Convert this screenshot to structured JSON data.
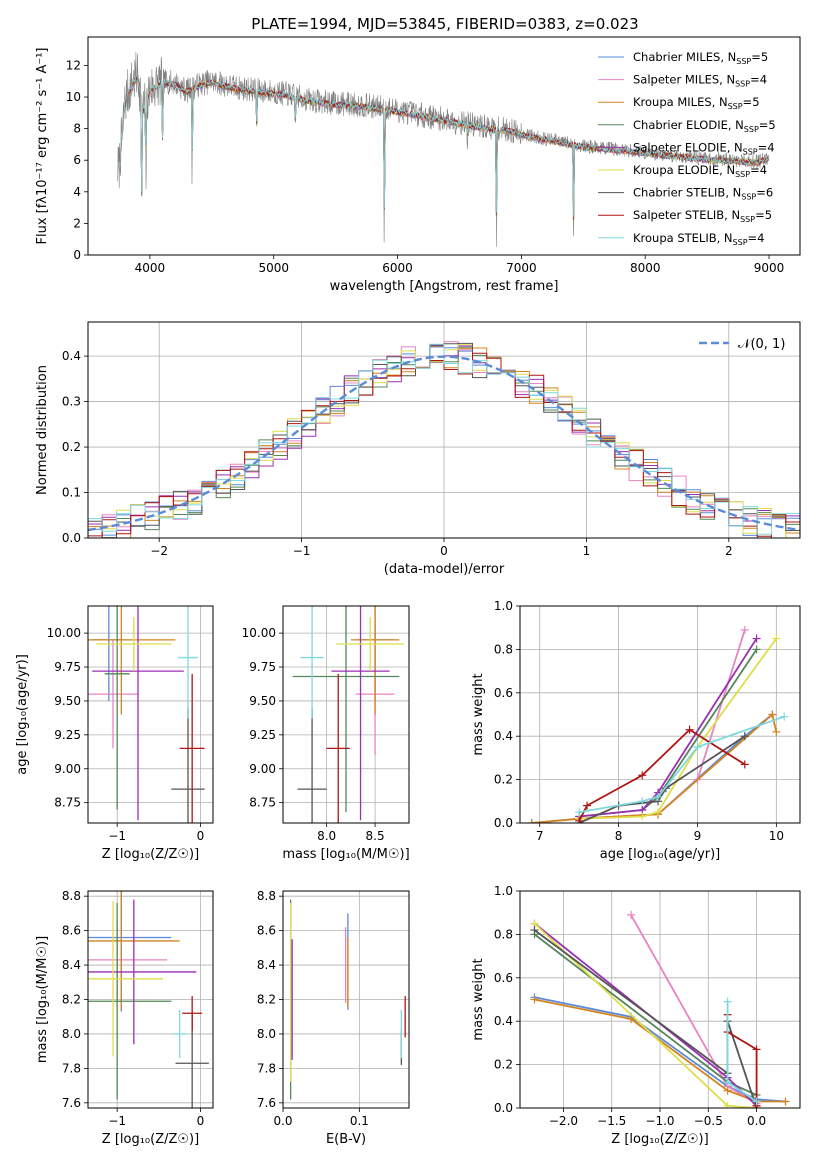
{
  "figure_title": "PLATE=1994, MJD=53845, FIBERID=0383, z=0.023",
  "series_colors": {
    "Chabrier MILES": "#5b8bd8",
    "Salpeter MILES": "#e884c4",
    "Kroupa MILES": "#d4841f",
    "Chabrier ELODIE": "#55875a",
    "Salpeter ELODIE": "#9b2fb4",
    "Kroupa ELODIE": "#dede4a",
    "Chabrier STELIB": "#555555",
    "Salpeter STELIB": "#b01414",
    "Kroupa STELIB": "#7fd8de"
  },
  "chart_data": [
    {
      "id": "spectrum",
      "type": "line",
      "title": "PLATE=1994, MJD=53845, FIBERID=0383, z=0.023",
      "xlabel": "wavelength [Angstrom, rest frame]",
      "ylabel": "Flux [fλ10⁻¹⁷ erg cm⁻² s⁻¹ A⁻¹]",
      "xlim": [
        3500,
        9250
      ],
      "ylim": [
        0,
        13.8
      ],
      "xticks": [
        4000,
        5000,
        6000,
        7000,
        8000,
        9000
      ],
      "yticks": [
        0,
        2,
        4,
        6,
        8,
        10,
        12
      ],
      "legend": "upper right",
      "legend_entries": [
        {
          "name": "Chabrier MILES",
          "nssp": "5"
        },
        {
          "name": "Salpeter MILES",
          "nssp": "4"
        },
        {
          "name": "Kroupa MILES",
          "nssp": "5"
        },
        {
          "name": "Chabrier ELODIE",
          "nssp": "5"
        },
        {
          "name": "Salpeter ELODIE",
          "nssp": "4"
        },
        {
          "name": "Kroupa ELODIE",
          "nssp": "4"
        },
        {
          "name": "Chabrier STELIB",
          "nssp": "6"
        },
        {
          "name": "Salpeter STELIB",
          "nssp": "5"
        },
        {
          "name": "Kroupa STELIB",
          "nssp": "4"
        }
      ],
      "data_continuum": {
        "x": [
          3750,
          3800,
          3850,
          3900,
          3950,
          4000,
          4100,
          4200,
          4300,
          4400,
          4500,
          4700,
          4900,
          5100,
          5300,
          5500,
          5700,
          5900,
          6100,
          6300,
          6500,
          6700,
          6900,
          7100,
          7300,
          7500,
          7700,
          7900,
          8100,
          8300,
          8500,
          8700,
          8900,
          9000
        ],
        "y": [
          5.5,
          9.8,
          10.8,
          11.4,
          9.2,
          10.5,
          11.0,
          10.9,
          10.4,
          10.8,
          11.0,
          10.6,
          10.4,
          10.2,
          9.8,
          9.6,
          9.5,
          9.3,
          9.0,
          8.7,
          8.4,
          8.1,
          7.9,
          7.5,
          7.2,
          6.9,
          6.75,
          6.6,
          6.4,
          6.25,
          6.1,
          6.0,
          5.9,
          6.2
        ]
      },
      "absorption_lines": [
        {
          "x": 3934,
          "y": 3.8
        },
        {
          "x": 3969,
          "y": 4.2
        },
        {
          "x": 4102,
          "y": 7.5
        },
        {
          "x": 4340,
          "y": 5.0
        },
        {
          "x": 4861,
          "y": 8.0
        },
        {
          "x": 5175,
          "y": 8.5
        },
        {
          "x": 5892,
          "y": 0.0
        },
        {
          "x": 6563,
          "y": 7.2
        },
        {
          "x": 6800,
          "y": 0.0
        },
        {
          "x": 7420,
          "y": 0.0
        }
      ]
    },
    {
      "id": "residuals",
      "type": "step",
      "xlabel": "(data-model)/error",
      "ylabel": "Normed distribution",
      "xlim": [
        -2.5,
        2.5
      ],
      "ylim": [
        0,
        0.475
      ],
      "xticks": [
        -2,
        -1,
        0,
        1,
        2
      ],
      "yticks": [
        0.0,
        0.1,
        0.2,
        0.3,
        0.4
      ],
      "legend": "upper right",
      "reference_label": "𝒩(0, 1)",
      "reference": {
        "mean": 0,
        "sigma": 1
      },
      "bin_width": 0.1
    },
    {
      "id": "age-vs-Z",
      "type": "errorbar",
      "xlabel": "Z [log₁₀(Z/Z☉)]",
      "ylabel": "age  [log₁₀(age/yr)]",
      "xlim": [
        -1.35,
        0.15
      ],
      "ylim": [
        8.6,
        10.2
      ],
      "xticks": [
        -1,
        0
      ],
      "yticks": [
        8.75,
        9.0,
        9.25,
        9.5,
        9.75,
        10.0
      ],
      "points": [
        {
          "series": "Chabrier MILES",
          "x": -1.1,
          "xerr": 0.2,
          "y": 9.95,
          "yerr": 0.45
        },
        {
          "series": "Salpeter MILES",
          "x": -1.05,
          "xerr": 0.3,
          "y": 9.55,
          "yerr": 0.4
        },
        {
          "series": "Kroupa MILES",
          "x": -0.95,
          "xerr": 0.65,
          "y": 9.95,
          "yerr": 0.55
        },
        {
          "series": "Chabrier ELODIE",
          "x": -1.0,
          "xerr": 0.15,
          "y": 9.7,
          "yerr": 1.0
        },
        {
          "series": "Salpeter ELODIE",
          "x": -0.75,
          "xerr": 0.55,
          "y": 9.72,
          "yerr": 1.1
        },
        {
          "series": "Kroupa ELODIE",
          "x": -0.8,
          "xerr": 0.45,
          "y": 9.92,
          "yerr": 0.2
        },
        {
          "series": "Chabrier STELIB",
          "x": -0.15,
          "xerr": 0.2,
          "y": 8.85,
          "yerr": 0.6
        },
        {
          "series": "Salpeter STELIB",
          "x": -0.1,
          "xerr": 0.15,
          "y": 9.15,
          "yerr": 0.55
        },
        {
          "series": "Kroupa STELIB",
          "x": -0.15,
          "xerr": 0.12,
          "y": 9.82,
          "yerr": 0.45
        }
      ]
    },
    {
      "id": "age-vs-mass",
      "type": "errorbar",
      "xlabel": "mass [log₁₀(M/M☉)]",
      "xlim": [
        7.55,
        8.85
      ],
      "ylim": [
        8.6,
        10.2
      ],
      "xticks": [
        8.0,
        8.5
      ],
      "yticks": [
        8.75,
        9.0,
        9.25,
        9.5,
        9.75,
        10.0
      ],
      "points": [
        {
          "series": "Chabrier MILES",
          "x": 8.5,
          "xerr": 0.2,
          "y": 9.95,
          "yerr": 0.45
        },
        {
          "series": "Salpeter MILES",
          "x": 8.5,
          "xerr": 0.2,
          "y": 9.55,
          "yerr": 0.45
        },
        {
          "series": "Kroupa MILES",
          "x": 8.5,
          "xerr": 0.25,
          "y": 9.95,
          "yerr": 0.55
        },
        {
          "series": "Chabrier ELODIE",
          "x": 8.2,
          "xerr": 0.55,
          "y": 9.68,
          "yerr": 1.0
        },
        {
          "series": "Salpeter ELODIE",
          "x": 8.35,
          "xerr": 0.3,
          "y": 9.72,
          "yerr": 1.1
        },
        {
          "series": "Kroupa ELODIE",
          "x": 8.45,
          "xerr": 0.35,
          "y": 9.92,
          "yerr": 0.2
        },
        {
          "series": "Chabrier STELIB",
          "x": 7.85,
          "xerr": 0.15,
          "y": 8.85,
          "yerr": 0.6
        },
        {
          "series": "Salpeter STELIB",
          "x": 8.12,
          "xerr": 0.12,
          "y": 9.15,
          "yerr": 0.55
        },
        {
          "series": "Kroupa STELIB",
          "x": 7.85,
          "xerr": 0.12,
          "y": 9.82,
          "yerr": 0.45
        }
      ]
    },
    {
      "id": "weight-vs-age",
      "type": "line",
      "xlabel": "age  [log₁₀(age/yr)]",
      "ylabel": "mass weight",
      "xlim": [
        6.75,
        10.3
      ],
      "ylim": [
        0,
        1
      ],
      "xticks": [
        7,
        8,
        9,
        10
      ],
      "yticks": [
        0.0,
        0.2,
        0.4,
        0.6,
        0.8,
        1.0
      ],
      "series": [
        {
          "name": "Chabrier MILES",
          "x": [
            6.9,
            7.5,
            8.5,
            9.6,
            9.95
          ],
          "y": [
            0.0,
            0.02,
            0.04,
            0.4,
            0.5
          ]
        },
        {
          "name": "Salpeter MILES",
          "x": [
            7.5,
            8.5,
            9.0,
            9.6
          ],
          "y": [
            0.02,
            0.04,
            0.2,
            0.89
          ]
        },
        {
          "name": "Kroupa MILES",
          "x": [
            6.9,
            7.5,
            8.5,
            9.95,
            10.0
          ],
          "y": [
            0.0,
            0.02,
            0.04,
            0.5,
            0.42
          ]
        },
        {
          "name": "Chabrier ELODIE",
          "x": [
            7.5,
            8.3,
            8.5,
            9.75
          ],
          "y": [
            0.03,
            0.06,
            0.12,
            0.8
          ]
        },
        {
          "name": "Salpeter ELODIE",
          "x": [
            7.5,
            8.3,
            8.5,
            9.75
          ],
          "y": [
            0.03,
            0.06,
            0.14,
            0.85
          ]
        },
        {
          "name": "Kroupa ELODIE",
          "x": [
            7.5,
            8.3,
            8.5,
            9.0,
            10.0
          ],
          "y": [
            0.02,
            0.03,
            0.05,
            0.35,
            0.85
          ]
        },
        {
          "name": "Chabrier STELIB",
          "x": [
            7.5,
            8.0,
            8.5,
            8.6,
            9.6
          ],
          "y": [
            0.0,
            0.08,
            0.1,
            0.16,
            0.4
          ]
        },
        {
          "name": "Salpeter STELIB",
          "x": [
            7.5,
            7.6,
            8.3,
            8.9,
            9.6
          ],
          "y": [
            0.01,
            0.08,
            0.22,
            0.43,
            0.27
          ]
        },
        {
          "name": "Kroupa STELIB",
          "x": [
            7.5,
            8.3,
            8.5,
            9.0,
            10.1
          ],
          "y": [
            0.05,
            0.1,
            0.12,
            0.35,
            0.49
          ]
        }
      ]
    },
    {
      "id": "mass-vs-Z",
      "type": "errorbar",
      "xlabel": "Z [log₁₀(Z/Z☉)]",
      "ylabel": "mass [log₁₀(M/M☉)]",
      "xlim": [
        -1.35,
        0.15
      ],
      "ylim": [
        7.57,
        8.83
      ],
      "xticks": [
        -1,
        0
      ],
      "yticks": [
        7.6,
        7.8,
        8.0,
        8.2,
        8.4,
        8.6,
        8.8
      ],
      "points": [
        {
          "series": "Chabrier MILES",
          "x": -0.95,
          "xerr": 0.6,
          "y": 8.56,
          "yerr": 0.43
        },
        {
          "series": "Salpeter MILES",
          "x": -1.0,
          "xerr": 0.6,
          "y": 8.43,
          "yerr": 0.22
        },
        {
          "series": "Kroupa MILES",
          "x": -0.95,
          "xerr": 0.7,
          "y": 8.54,
          "yerr": 0.4
        },
        {
          "series": "Chabrier ELODIE",
          "x": -1.0,
          "xerr": 0.65,
          "y": 8.19,
          "yerr": 0.57
        },
        {
          "series": "Salpeter ELODIE",
          "x": -0.8,
          "xerr": 0.75,
          "y": 8.36,
          "yerr": 0.42
        },
        {
          "series": "Kroupa ELODIE",
          "x": -1.05,
          "xerr": 0.6,
          "y": 8.32,
          "yerr": 0.45
        },
        {
          "series": "Chabrier STELIB",
          "x": -0.1,
          "xerr": 0.2,
          "y": 7.83,
          "yerr": 0.3
        },
        {
          "series": "Salpeter STELIB",
          "x": -0.1,
          "xerr": 0.12,
          "y": 8.12,
          "yerr": 0.1
        },
        {
          "series": "Kroupa STELIB",
          "x": -0.25,
          "xerr": 0.08,
          "y": 8.0,
          "yerr": 0.14
        }
      ]
    },
    {
      "id": "mass-vs-EBV",
      "type": "errorbar",
      "xlabel": "E(B-V)",
      "xlim": [
        0.0,
        0.165
      ],
      "ylim": [
        7.57,
        8.83
      ],
      "xticks": [
        0.0,
        0.1
      ],
      "yticks": [
        7.6,
        7.8,
        8.0,
        8.2,
        8.4,
        8.6,
        8.8
      ],
      "points": [
        {
          "series": "Chabrier MILES",
          "x": 0.085,
          "y": 8.42,
          "yerr": 0.28
        },
        {
          "series": "Salpeter MILES",
          "x": 0.082,
          "y": 8.4,
          "yerr": 0.22
        },
        {
          "series": "Kroupa MILES",
          "x": 0.085,
          "y": 8.36,
          "yerr": 0.2
        },
        {
          "series": "Chabrier ELODIE",
          "x": 0.01,
          "y": 8.2,
          "yerr": 0.58
        },
        {
          "series": "Salpeter ELODIE",
          "x": 0.012,
          "y": 8.2,
          "yerr": 0.35
        },
        {
          "series": "Kroupa ELODIE",
          "x": 0.01,
          "y": 8.24,
          "yerr": 0.52
        },
        {
          "series": "Chabrier STELIB",
          "x": 0.155,
          "y": 7.92,
          "yerr": 0.1
        },
        {
          "series": "Salpeter STELIB",
          "x": 0.16,
          "y": 8.1,
          "yerr": 0.12
        },
        {
          "series": "Kroupa STELIB",
          "x": 0.155,
          "y": 8.0,
          "yerr": 0.14
        }
      ]
    },
    {
      "id": "weight-vs-Z",
      "type": "line",
      "xlabel": "Z [log₁₀(Z/Z☉)]",
      "ylabel": "mass weight",
      "xlim": [
        -2.45,
        0.45
      ],
      "ylim": [
        0,
        1
      ],
      "xticks": [
        -2.0,
        -1.5,
        -1.0,
        -0.5,
        0.0
      ],
      "yticks": [
        0.0,
        0.2,
        0.4,
        0.6,
        0.8,
        1.0
      ],
      "series": [
        {
          "name": "Chabrier MILES",
          "x": [
            -2.3,
            -1.3,
            -0.3,
            0.0,
            0.3
          ],
          "y": [
            0.51,
            0.42,
            0.1,
            0.04,
            0.03
          ]
        },
        {
          "name": "Salpeter MILES",
          "x": [
            -1.3,
            -0.3,
            0.0
          ],
          "y": [
            0.89,
            0.1,
            0.02
          ]
        },
        {
          "name": "Kroupa MILES",
          "x": [
            -2.3,
            -1.3,
            -0.3,
            0.0,
            0.3
          ],
          "y": [
            0.5,
            0.41,
            0.08,
            0.03,
            0.03
          ]
        },
        {
          "name": "Chabrier ELODIE",
          "x": [
            -2.3,
            -0.3,
            0.0
          ],
          "y": [
            0.8,
            0.12,
            0.06
          ]
        },
        {
          "name": "Salpeter ELODIE",
          "x": [
            -2.3,
            -0.3,
            0.0
          ],
          "y": [
            0.85,
            0.14,
            0.01
          ]
        },
        {
          "name": "Kroupa ELODIE",
          "x": [
            -2.3,
            -0.3,
            0.0
          ],
          "y": [
            0.85,
            0.01,
            0.0
          ]
        },
        {
          "name": "Chabrier STELIB",
          "x": [
            -2.3,
            -0.3,
            -0.3,
            0.0
          ],
          "y": [
            0.82,
            0.16,
            0.4,
            0.0
          ]
        },
        {
          "name": "Salpeter STELIB",
          "x": [
            -0.3,
            -0.3,
            0.0,
            0.0
          ],
          "y": [
            0.43,
            0.35,
            0.27,
            0.01
          ]
        },
        {
          "name": "Kroupa STELIB",
          "x": [
            -0.3,
            -0.3,
            0.0
          ],
          "y": [
            0.49,
            0.12,
            0.03
          ]
        }
      ]
    }
  ]
}
